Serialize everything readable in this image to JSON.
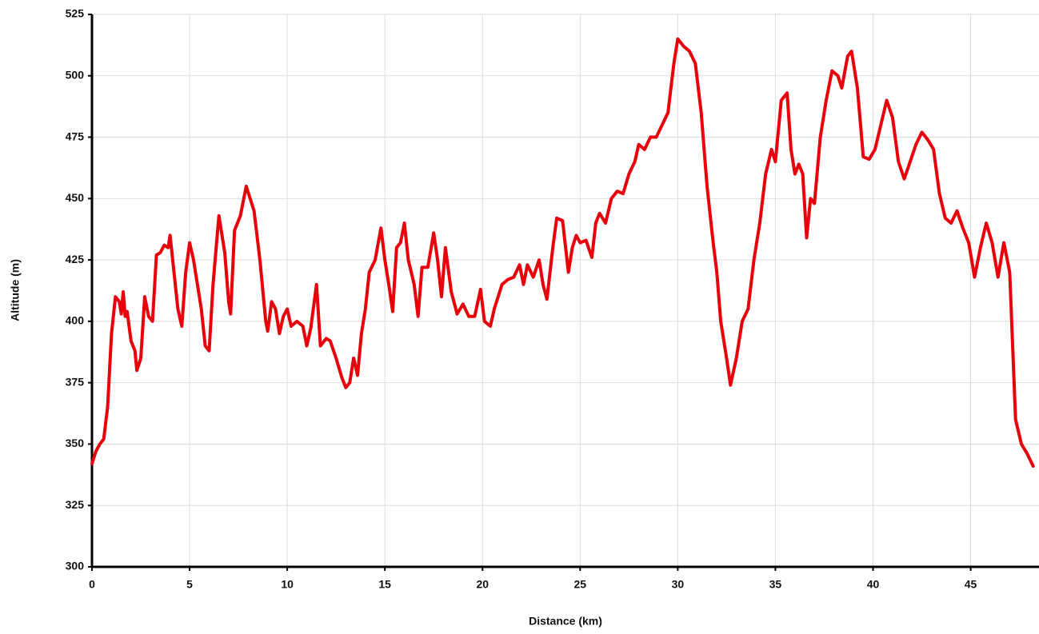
{
  "chart_data": {
    "type": "line",
    "x_label": "Distance (km)",
    "y_label": "Altitude (m)",
    "x": [
      0,
      0.2,
      0.4,
      0.6,
      0.8,
      1.0,
      1.2,
      1.4,
      1.5,
      1.6,
      1.7,
      1.8,
      2.0,
      2.2,
      2.3,
      2.5,
      2.7,
      2.9,
      3.1,
      3.3,
      3.5,
      3.7,
      3.9,
      4.0,
      4.2,
      4.4,
      4.6,
      4.8,
      5.0,
      5.2,
      5.4,
      5.6,
      5.8,
      6.0,
      6.2,
      6.5,
      6.8,
      7.0,
      7.1,
      7.3,
      7.6,
      7.9,
      8.1,
      8.3,
      8.6,
      8.9,
      9.0,
      9.2,
      9.4,
      9.6,
      9.8,
      10.0,
      10.2,
      10.5,
      10.8,
      11.0,
      11.2,
      11.5,
      11.7,
      12.0,
      12.2,
      12.5,
      12.8,
      13.0,
      13.2,
      13.4,
      13.6,
      13.8,
      14.0,
      14.2,
      14.5,
      14.8,
      15.0,
      15.2,
      15.4,
      15.6,
      15.8,
      16.0,
      16.2,
      16.5,
      16.7,
      16.9,
      17.2,
      17.5,
      17.7,
      17.9,
      18.1,
      18.4,
      18.7,
      19.0,
      19.3,
      19.6,
      19.9,
      20.1,
      20.4,
      20.6,
      20.8,
      21.0,
      21.3,
      21.6,
      21.9,
      22.1,
      22.3,
      22.6,
      22.9,
      23.1,
      23.3,
      23.6,
      23.8,
      24.1,
      24.4,
      24.6,
      24.8,
      25.0,
      25.3,
      25.6,
      25.8,
      26.0,
      26.3,
      26.6,
      26.9,
      27.2,
      27.5,
      27.8,
      28.0,
      28.3,
      28.6,
      28.9,
      29.2,
      29.5,
      29.8,
      30.0,
      30.3,
      30.6,
      30.9,
      31.2,
      31.5,
      31.8,
      32.0,
      32.2,
      32.5,
      32.7,
      33.0,
      33.3,
      33.6,
      33.9,
      34.2,
      34.5,
      34.8,
      35.0,
      35.3,
      35.6,
      35.8,
      36.0,
      36.2,
      36.4,
      36.6,
      36.8,
      37.0,
      37.3,
      37.6,
      37.9,
      38.2,
      38.4,
      38.7,
      38.9,
      39.2,
      39.5,
      39.8,
      40.1,
      40.4,
      40.7,
      41.0,
      41.3,
      41.6,
      41.9,
      42.2,
      42.5,
      42.8,
      43.1,
      43.4,
      43.7,
      44.0,
      44.3,
      44.6,
      44.9,
      45.2,
      45.5,
      45.8,
      46.1,
      46.4,
      46.7,
      47.0,
      47.3,
      47.6,
      47.9,
      48.2
    ],
    "values": [
      342,
      347,
      350,
      352,
      365,
      395,
      410,
      408,
      403,
      412,
      402,
      404,
      392,
      388,
      380,
      385,
      410,
      402,
      400,
      427,
      428,
      431,
      430,
      435,
      420,
      405,
      398,
      420,
      432,
      425,
      415,
      405,
      390,
      388,
      415,
      443,
      428,
      408,
      403,
      437,
      443,
      455,
      450,
      445,
      425,
      400,
      396,
      408,
      405,
      395,
      402,
      405,
      398,
      400,
      398,
      390,
      397,
      415,
      390,
      393,
      392,
      385,
      377,
      373,
      375,
      385,
      378,
      395,
      405,
      420,
      425,
      438,
      425,
      415,
      404,
      430,
      432,
      440,
      425,
      415,
      402,
      422,
      422,
      436,
      425,
      410,
      430,
      412,
      403,
      407,
      402,
      402,
      413,
      400,
      398,
      405,
      410,
      415,
      417,
      418,
      423,
      415,
      423,
      418,
      425,
      415,
      409,
      430,
      442,
      441,
      420,
      430,
      435,
      432,
      433,
      426,
      440,
      444,
      440,
      450,
      453,
      452,
      460,
      465,
      472,
      470,
      475,
      475,
      480,
      485,
      505,
      515,
      512,
      510,
      505,
      485,
      455,
      433,
      420,
      400,
      385,
      374,
      385,
      400,
      405,
      425,
      440,
      460,
      470,
      465,
      490,
      493,
      470,
      460,
      464,
      460,
      434,
      450,
      448,
      475,
      490,
      502,
      500,
      495,
      508,
      510,
      495,
      467,
      466,
      470,
      480,
      490,
      483,
      465,
      458,
      465,
      472,
      477,
      474,
      470,
      452,
      442,
      440,
      445,
      438,
      432,
      418,
      430,
      440,
      432,
      418,
      432,
      420,
      360,
      350,
      346,
      341
    ],
    "color": "#e8000b",
    "xlim": [
      0,
      48.5
    ],
    "ylim": [
      300,
      525
    ],
    "xticks": [
      0,
      5,
      10,
      15,
      20,
      25,
      30,
      35,
      40,
      45
    ],
    "yticks": [
      300,
      325,
      350,
      375,
      400,
      425,
      450,
      475,
      500,
      525
    ],
    "grid": true
  }
}
